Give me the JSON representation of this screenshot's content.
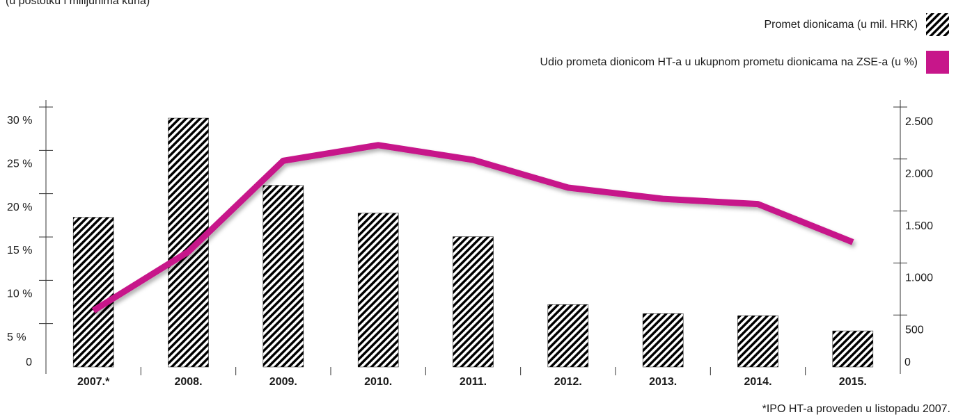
{
  "chart_data": {
    "type": "bar",
    "subtitle": "(u postotku i milijunima kuna)",
    "footnote": "*IPO HT-a proveden u listopadu 2007.",
    "categories": [
      "2007.*",
      "2008.",
      "2009.",
      "2010.",
      "2011.",
      "2012.",
      "2013.",
      "2014.",
      "2015."
    ],
    "series": [
      {
        "name": "Promet dionicama (u mil. HRK)",
        "type": "bar",
        "color": "#000000",
        "axis": "y2",
        "values": [
          1440,
          2393,
          1747,
          1480,
          1253,
          600,
          513,
          493,
          347
        ]
      },
      {
        "name": "Udio prometa dionicom HT-a u ukupnom prometu dionicama na ZSE-a (u %)",
        "type": "line",
        "color": "#c7168a",
        "axis": "y",
        "values": [
          6.5,
          13.3,
          23.8,
          25.6,
          23.9,
          20.7,
          19.4,
          18.8,
          14.4
        ]
      }
    ],
    "ylim": [
      0,
      30
    ],
    "yticks": [
      0,
      {
        "value": 5,
        "label": "5 %"
      },
      {
        "value": 10,
        "label": "10 %"
      },
      {
        "value": 15,
        "label": "15 %"
      },
      {
        "value": 20,
        "label": "20 %"
      },
      {
        "value": 25,
        "label": "25 %"
      },
      {
        "value": 30,
        "label": "30 %"
      }
    ],
    "y2lim": [
      0,
      2500
    ],
    "y2ticks": [
      0,
      500,
      {
        "value": 1000,
        "label": "1.000"
      },
      {
        "value": 1500,
        "label": "1.500"
      },
      {
        "value": 2000,
        "label": "2.000"
      },
      {
        "value": 2500,
        "label": "2.500"
      }
    ]
  }
}
